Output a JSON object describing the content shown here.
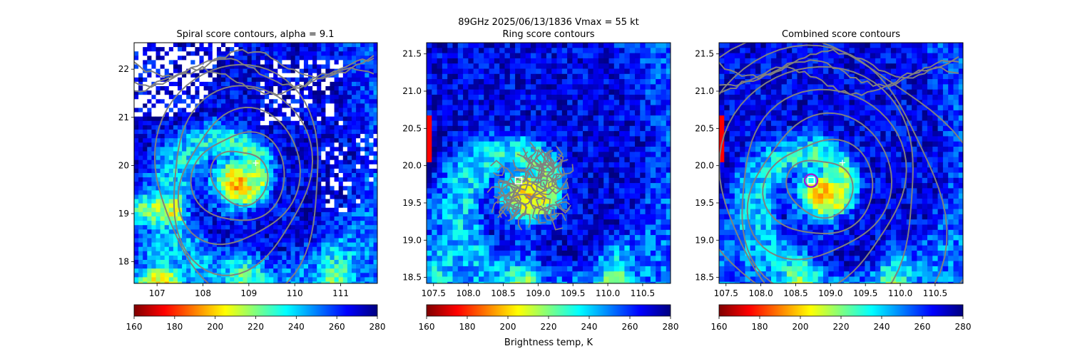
{
  "figure": {
    "suptitle_line1": "89GHz  2025/06/13/1836    Vmax = 55 kt",
    "colorbar_label": "Brightness temp, K"
  },
  "colormap": {
    "name": "jet_r",
    "stops": [
      "#7f0000",
      "#ff0000",
      "#ff7f00",
      "#ffff00",
      "#7fff7f",
      "#00ffff",
      "#007fff",
      "#0000ff",
      "#00007f"
    ]
  },
  "colors": {
    "contour": "#808080",
    "center_marker": "#ffffff",
    "combined_circle": "#9b1fd6"
  },
  "chart_data": [
    {
      "type": "heatmap",
      "title": "Spiral score contours, alpha =  9.1",
      "xlim": [
        106.5,
        111.8
      ],
      "ylim": [
        17.55,
        22.55
      ],
      "xticks": [
        107,
        108,
        109,
        110,
        111
      ],
      "yticks": [
        18,
        19,
        20,
        21,
        22
      ],
      "xtick_labels": [
        "107",
        "108",
        "109",
        "110",
        "111"
      ],
      "ytick_labels": [
        "18",
        "19",
        "20",
        "21",
        "22"
      ],
      "colorbar": {
        "vmin": 160,
        "vmax": 280,
        "ticks": [
          "160",
          "180",
          "200",
          "220",
          "240",
          "260",
          "280"
        ]
      },
      "storm_center": {
        "lon": 108.75,
        "lat": 19.65
      },
      "best_track_plus": {
        "lon": 109.15,
        "lat": 20.05
      },
      "contour_center": {
        "lon": 108.8,
        "lat": 19.75
      },
      "contour_levels": 5,
      "missing_data": true
    },
    {
      "type": "heatmap",
      "title": "Ring score contours",
      "xlim": [
        107.4,
        110.9
      ],
      "ylim": [
        18.42,
        21.65
      ],
      "xticks": [
        107.5,
        108.0,
        108.5,
        109.0,
        109.5,
        110.0,
        110.5
      ],
      "yticks": [
        18.5,
        19.0,
        19.5,
        20.0,
        20.5,
        21.0,
        21.5
      ],
      "xtick_labels": [
        "107.5",
        "108.0",
        "108.5",
        "109.0",
        "109.5",
        "110.0",
        "110.5"
      ],
      "ytick_labels": [
        "18.5",
        "19.0",
        "19.5",
        "20.0",
        "20.5",
        "21.0",
        "21.5"
      ],
      "colorbar": {
        "vmin": 160,
        "vmax": 280,
        "ticks": [
          "160",
          "180",
          "200",
          "220",
          "240",
          "260",
          "280"
        ]
      },
      "storm_center": {
        "lon": 108.85,
        "lat": 19.62
      },
      "square_marker": {
        "lon": 108.72,
        "lat": 19.8
      },
      "ring_region": {
        "lon": 108.95,
        "lat": 19.7,
        "radius_deg": 0.6
      }
    },
    {
      "type": "heatmap",
      "title": "Combined score contours",
      "xlim": [
        107.4,
        110.9
      ],
      "ylim": [
        18.42,
        21.65
      ],
      "xticks": [
        107.5,
        108.0,
        108.5,
        109.0,
        109.5,
        110.0,
        110.5
      ],
      "yticks": [
        18.5,
        19.0,
        19.5,
        20.0,
        20.5,
        21.0,
        21.5
      ],
      "xtick_labels": [
        "107.5",
        "108.0",
        "108.5",
        "109.0",
        "109.5",
        "110.0",
        "110.5"
      ],
      "ytick_labels": [
        "18.5",
        "19.0",
        "19.5",
        "20.0",
        "20.5",
        "21.0",
        "21.5"
      ],
      "colorbar": {
        "vmin": 160,
        "vmax": 280,
        "ticks": [
          "160",
          "180",
          "200",
          "220",
          "240",
          "260",
          "280"
        ]
      },
      "storm_center": {
        "lon": 108.9,
        "lat": 19.62
      },
      "best_track_plus": {
        "lon": 109.17,
        "lat": 20.04
      },
      "square_marker": {
        "lon": 108.72,
        "lat": 19.8
      },
      "circle_marker": {
        "lon": 108.72,
        "lat": 19.8
      },
      "contour_center": {
        "lon": 108.85,
        "lat": 19.7
      },
      "contour_levels": 7
    }
  ]
}
